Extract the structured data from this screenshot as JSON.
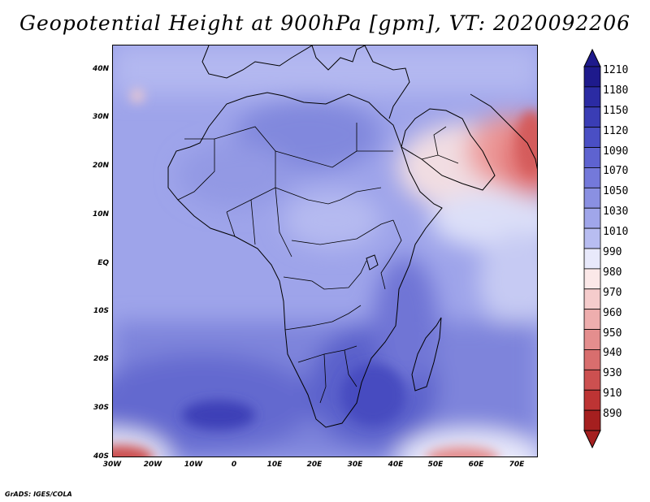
{
  "title": "Geopotential Height at 900hPa [gpm], VT: 2020092206",
  "credit": "GrADS: IGES/COLA",
  "map": {
    "projection": "latlon",
    "lon_range": [
      -30,
      75
    ],
    "lat_range": [
      -40,
      45
    ],
    "lat_ticks": [
      "40N",
      "30N",
      "20N",
      "10N",
      "EQ",
      "10S",
      "20S",
      "30S",
      "40S"
    ],
    "lon_ticks": [
      "30W",
      "20W",
      "10W",
      "0",
      "10E",
      "20E",
      "30E",
      "40E",
      "50E",
      "60E",
      "70E"
    ],
    "field": "Geopotential Height",
    "level": "900hPa",
    "units": "gpm"
  },
  "colorbar": {
    "levels": [
      "1210",
      "1180",
      "1150",
      "1120",
      "1090",
      "1070",
      "1050",
      "1030",
      "1010",
      "990",
      "980",
      "970",
      "960",
      "950",
      "940",
      "930",
      "910",
      "890"
    ],
    "colors": [
      "#1e1a8c",
      "#2b2ba3",
      "#3a3db5",
      "#4a4fc4",
      "#5e63d0",
      "#7479da",
      "#8a90e2",
      "#a0a6ea",
      "#b8bdf1",
      "#e8e9fb",
      "#fbe8e8",
      "#f5cccc",
      "#eeaeae",
      "#e48e8e",
      "#d86e6e",
      "#cc5050",
      "#bd3434",
      "#a51f1f"
    ]
  }
}
